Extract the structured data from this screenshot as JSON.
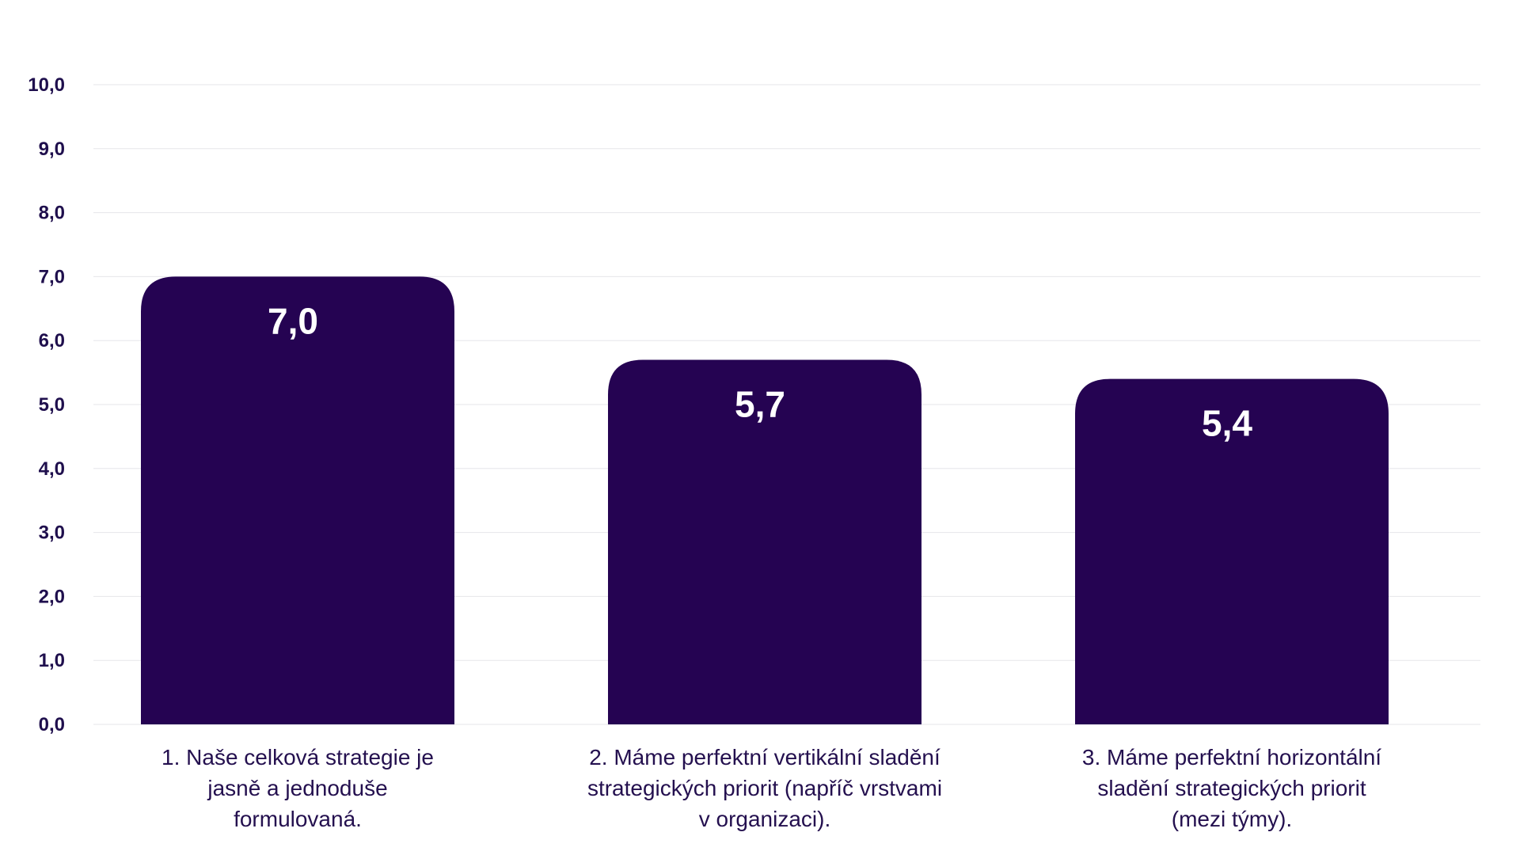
{
  "chart_data": {
    "type": "bar",
    "categories": [
      "1. Naše celková strategie je jasně a jednoduše formulovaná.",
      "2. Máme perfektní vertikální sladění strategických priorit (napříč vrstvami v organizaci).",
      "3. Máme perfektní horizontální sladění strategických priorit (mezi týmy)."
    ],
    "category_lines": [
      [
        "1. Naše celková strategie je",
        "jasně a jednoduše",
        "formulovaná."
      ],
      [
        "2. Máme perfektní vertikální sladění",
        "strategických priorit (napříč vrstvami",
        "v organizaci)."
      ],
      [
        "3. Máme perfektní horizontální",
        "sladění strategických priorit",
        "(mezi týmy)."
      ]
    ],
    "values": [
      7.0,
      5.7,
      5.4
    ],
    "value_labels": [
      "7,0",
      "5,7",
      "5,4"
    ],
    "yticks": [
      0,
      1,
      2,
      3,
      4,
      5,
      6,
      7,
      8,
      9,
      10
    ],
    "ytick_labels": [
      "0,0",
      "1,0",
      "2,0",
      "3,0",
      "4,0",
      "5,0",
      "6,0",
      "7,0",
      "8,0",
      "9,0",
      "10,0"
    ],
    "ylim": [
      0,
      10
    ],
    "title": "",
    "xlabel": "",
    "ylabel": "",
    "grid": true,
    "legend": "none",
    "colors": {
      "bar": "#250352",
      "value_label": "#ffffff",
      "gridline": "#e6e6ea",
      "tick_label": "#1f0f4d",
      "category_label": "#24104f"
    }
  }
}
